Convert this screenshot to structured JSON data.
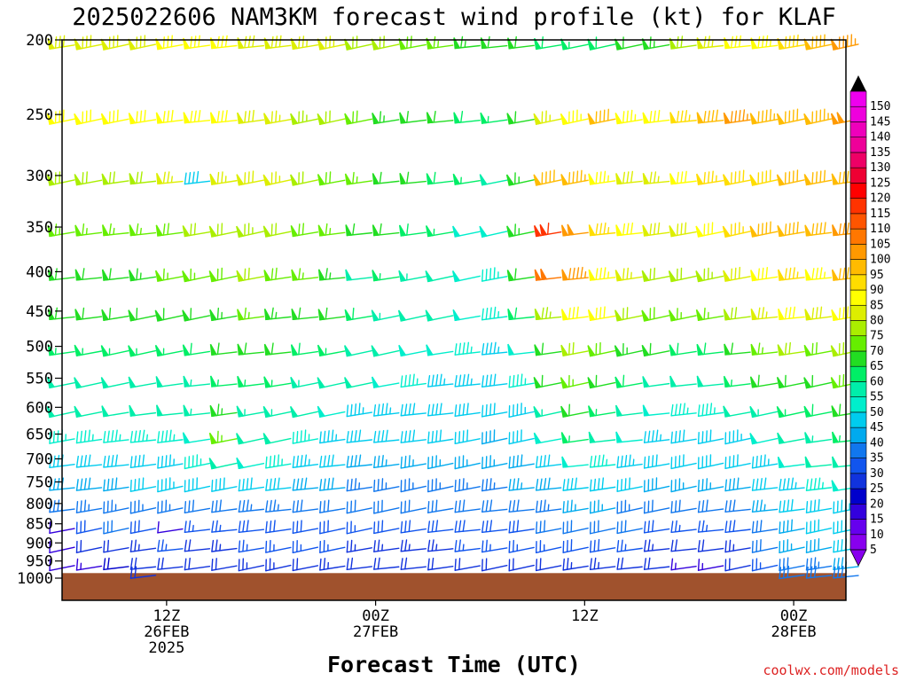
{
  "chart_data": {
    "type": "wind-barb time-height section",
    "title": "2025022606 NAM3KM forecast wind profile (kt) for KLAF",
    "xlabel": "Forecast Time (UTC)",
    "ylabel": "",
    "units": "kt",
    "credit": "coolwx.com/models",
    "time_range_hours": [
      0,
      45
    ],
    "x_ticks": [
      {
        "hour": 6,
        "lines": [
          "12Z",
          "26FEB",
          "2025"
        ]
      },
      {
        "hour": 18,
        "lines": [
          "00Z",
          "27FEB"
        ]
      },
      {
        "hour": 30,
        "lines": [
          "12Z"
        ]
      },
      {
        "hour": 42,
        "lines": [
          "00Z",
          "28FEB"
        ]
      },
      {
        "hour": 54,
        "lines": [
          "12Z"
        ]
      }
    ],
    "pressure_levels": [
      200,
      250,
      300,
      350,
      400,
      450,
      500,
      550,
      600,
      650,
      700,
      750,
      800,
      850,
      900,
      950,
      1000
    ],
    "ylim": [
      200,
      1000
    ],
    "surface_pressure_hpa": 985,
    "colorbar": {
      "values": [
        5,
        10,
        15,
        20,
        25,
        30,
        35,
        40,
        45,
        50,
        55,
        60,
        65,
        70,
        75,
        80,
        85,
        90,
        95,
        100,
        105,
        110,
        115,
        120,
        125,
        130,
        135,
        140,
        145,
        150
      ],
      "colors": [
        "#8800ee",
        "#6600ee",
        "#3300dd",
        "#0000cc",
        "#1133dd",
        "#1155ee",
        "#1177ee",
        "#00aaee",
        "#00ccee",
        "#00eecc",
        "#00eeaa",
        "#00ee66",
        "#22dd22",
        "#66ee00",
        "#aaee00",
        "#ddee00",
        "#ffff00",
        "#ffdd00",
        "#ffbb00",
        "#ff9900",
        "#ff7700",
        "#ff5500",
        "#ff3300",
        "#ff0000",
        "#ee0033",
        "#ee0066",
        "#ee0099",
        "#ee00bb",
        "#ee00dd",
        "#ee00ee"
      ]
    },
    "wind_profiles": [
      {
        "pressure": 200,
        "kt": [
          78,
          78,
          78,
          78,
          80,
          80,
          80,
          78,
          78,
          76,
          76,
          72,
          70,
          68,
          66,
          64,
          60,
          60,
          58,
          56,
          58,
          60,
          64,
          70,
          76,
          80,
          84,
          88,
          92,
          95
        ]
      },
      {
        "pressure": 250,
        "kt": [
          82,
          82,
          82,
          82,
          82,
          82,
          82,
          78,
          76,
          74,
          72,
          68,
          64,
          62,
          60,
          58,
          56,
          62,
          76,
          84,
          90,
          84,
          82,
          86,
          92,
          96,
          94,
          92,
          94,
          98
        ]
      },
      {
        "pressure": 300,
        "kt": [
          72,
          72,
          72,
          72,
          76,
          40,
          76,
          78,
          76,
          70,
          68,
          66,
          62,
          60,
          58,
          56,
          50,
          64,
          92,
          94,
          84,
          78,
          76,
          82,
          86,
          88,
          88,
          92,
          90,
          92
        ]
      },
      {
        "pressure": 350,
        "kt": [
          66,
          66,
          66,
          66,
          68,
          70,
          72,
          74,
          72,
          68,
          66,
          62,
          60,
          58,
          56,
          48,
          48,
          64,
          110,
          98,
          86,
          82,
          78,
          78,
          80,
          86,
          90,
          92,
          90,
          96
        ]
      },
      {
        "pressure": 400,
        "kt": [
          62,
          62,
          62,
          64,
          66,
          66,
          68,
          70,
          68,
          66,
          64,
          50,
          56,
          54,
          52,
          48,
          46,
          60,
          100,
          96,
          84,
          76,
          72,
          72,
          74,
          78,
          82,
          86,
          84,
          92
        ]
      },
      {
        "pressure": 450,
        "kt": [
          60,
          60,
          60,
          60,
          62,
          62,
          64,
          66,
          64,
          62,
          60,
          58,
          54,
          52,
          50,
          48,
          46,
          58,
          74,
          82,
          80,
          72,
          68,
          66,
          66,
          72,
          76,
          80,
          78,
          80
        ]
      },
      {
        "pressure": 500,
        "kt": [
          56,
          56,
          56,
          56,
          56,
          58,
          60,
          60,
          60,
          58,
          56,
          52,
          50,
          48,
          48,
          46,
          44,
          48,
          62,
          70,
          68,
          64,
          60,
          58,
          58,
          62,
          66,
          70,
          68,
          70
        ]
      },
      {
        "pressure": 550,
        "kt": [
          52,
          52,
          52,
          52,
          52,
          54,
          56,
          56,
          56,
          54,
          52,
          50,
          48,
          46,
          44,
          44,
          42,
          46,
          60,
          66,
          62,
          58,
          52,
          52,
          52,
          56,
          60,
          60,
          62,
          68
        ]
      },
      {
        "pressure": 600,
        "kt": [
          50,
          50,
          50,
          50,
          50,
          54,
          64,
          54,
          54,
          50,
          48,
          44,
          44,
          42,
          42,
          40,
          40,
          44,
          54,
          62,
          56,
          52,
          48,
          46,
          46,
          50,
          54,
          56,
          58,
          62
        ]
      },
      {
        "pressure": 650,
        "kt": [
          46,
          46,
          46,
          46,
          46,
          48,
          66,
          50,
          50,
          46,
          44,
          42,
          40,
          40,
          40,
          40,
          38,
          42,
          48,
          56,
          50,
          48,
          44,
          42,
          42,
          44,
          48,
          52,
          54,
          56
        ]
      },
      {
        "pressure": 700,
        "kt": [
          42,
          42,
          42,
          42,
          44,
          46,
          50,
          48,
          46,
          44,
          42,
          38,
          36,
          36,
          36,
          36,
          36,
          38,
          42,
          48,
          46,
          44,
          42,
          40,
          40,
          42,
          44,
          48,
          50,
          52
        ]
      },
      {
        "pressure": 750,
        "kt": [
          38,
          38,
          38,
          40,
          44,
          42,
          40,
          40,
          40,
          38,
          38,
          34,
          34,
          34,
          34,
          34,
          34,
          36,
          38,
          42,
          40,
          40,
          38,
          36,
          36,
          38,
          40,
          44,
          46,
          48
        ]
      },
      {
        "pressure": 800,
        "kt": [
          34,
          34,
          34,
          34,
          34,
          32,
          32,
          34,
          34,
          32,
          32,
          30,
          30,
          30,
          30,
          30,
          30,
          32,
          34,
          36,
          36,
          34,
          32,
          30,
          30,
          32,
          36,
          40,
          42,
          44
        ]
      },
      {
        "pressure": 850,
        "kt": [
          10,
          28,
          30,
          28,
          12,
          26,
          26,
          28,
          28,
          28,
          28,
          26,
          28,
          28,
          28,
          28,
          28,
          28,
          30,
          32,
          32,
          30,
          28,
          26,
          26,
          28,
          32,
          38,
          40,
          42
        ]
      },
      {
        "pressure": 900,
        "kt": [
          12,
          20,
          22,
          24,
          26,
          22,
          24,
          26,
          26,
          26,
          26,
          24,
          24,
          24,
          24,
          26,
          26,
          26,
          26,
          28,
          28,
          26,
          24,
          22,
          20,
          24,
          30,
          36,
          38,
          40
        ]
      },
      {
        "pressure": 950,
        "kt": [
          12,
          14,
          18,
          22,
          22,
          20,
          22,
          24,
          24,
          22,
          24,
          20,
          20,
          20,
          20,
          22,
          22,
          22,
          22,
          24,
          24,
          22,
          20,
          14,
          14,
          20,
          26,
          30,
          34,
          36
        ]
      },
      {
        "pressure": 975,
        "kt": [
          null,
          null,
          null,
          22,
          null,
          null,
          null,
          null,
          null,
          null,
          null,
          null,
          null,
          null,
          null,
          null,
          null,
          null,
          null,
          null,
          null,
          null,
          null,
          null,
          null,
          null,
          null,
          30,
          32,
          34
        ]
      }
    ]
  }
}
